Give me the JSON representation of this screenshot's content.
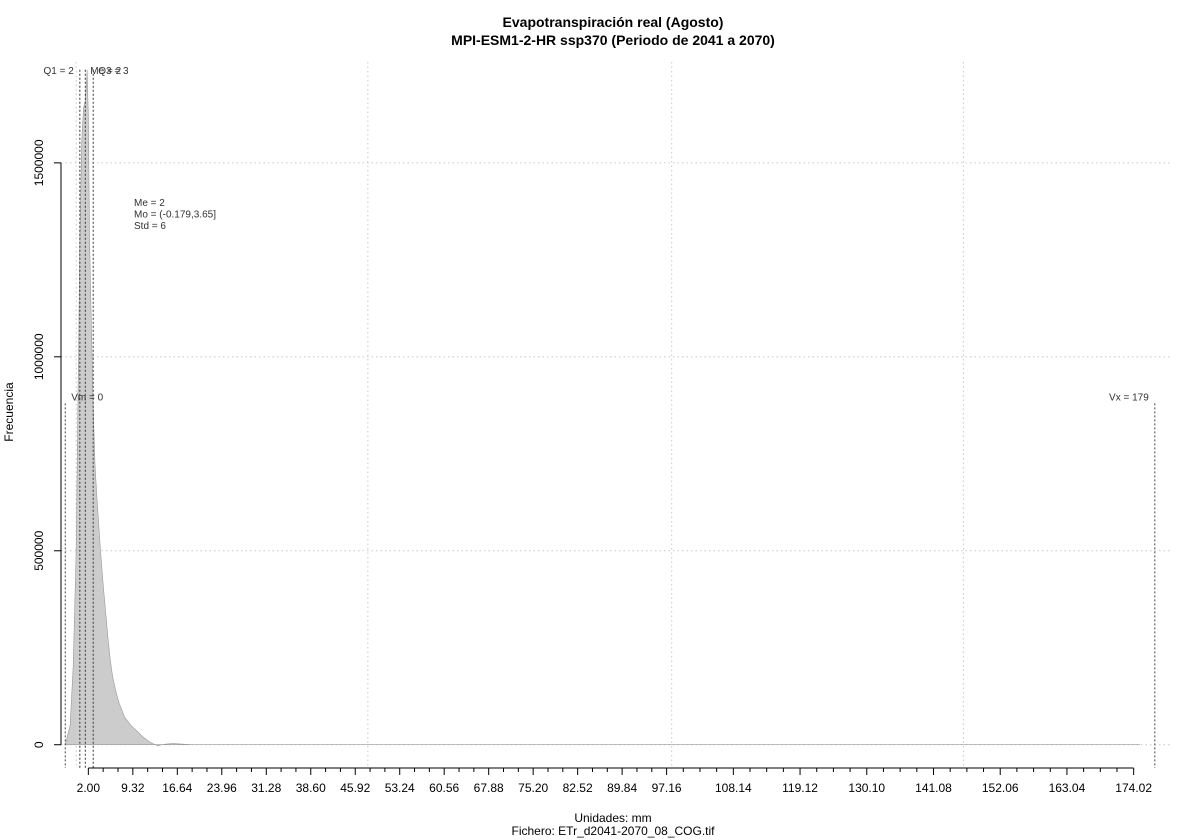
{
  "chart_data": {
    "type": "area",
    "title": "Evapotranspiración real (Agosto)",
    "subtitle": "MPI-ESM1-2-HR ssp370 (Periodo de 2041 a 2070)",
    "xlabel": "Unidades: mm",
    "ylabel": "Frecuencia",
    "footer": "Fichero: ETr_d2041-2070_08_COG.tif",
    "xlim": [
      -2.5,
      180
    ],
    "ylim": [
      -60000,
      1760000
    ],
    "x_ticks": [
      2.0,
      9.32,
      16.64,
      23.96,
      31.28,
      38.6,
      45.92,
      53.24,
      60.56,
      67.88,
      75.2,
      82.52,
      89.84,
      97.16,
      108.14,
      119.12,
      130.1,
      141.08,
      152.06,
      163.04,
      174.02
    ],
    "x_tick_labels": [
      "2.00",
      "9.32",
      "16.64",
      "23.96",
      "31.28",
      "38.60",
      "45.92",
      "53.24",
      "60.56",
      "67.88",
      "75.20",
      "82.52",
      "89.84",
      "97.16",
      "108.14",
      "119.12",
      "130.10",
      "141.08",
      "152.06",
      "163.04",
      "174.02"
    ],
    "y_ticks": [
      0,
      500000,
      1000000,
      1500000
    ],
    "y_tick_labels": [
      "0",
      "500000",
      "1000000",
      "1500000"
    ],
    "x_grid": [
      0,
      48,
      98,
      146
    ],
    "y_grid": [
      0,
      500000,
      1000000,
      1500000
    ],
    "grid": true,
    "series": [
      {
        "color": "#cccccc",
        "x": [
          -1.8,
          -1.0,
          -0.5,
          0.0,
          0.3,
          0.6,
          0.9,
          1.2,
          1.5,
          1.8,
          2.0,
          2.2,
          2.5,
          2.8,
          3.1,
          3.4,
          3.7,
          4.0,
          4.4,
          4.8,
          5.2,
          5.6,
          6.0,
          6.5,
          7.0,
          7.5,
          8.0,
          9.0,
          10.0,
          11.0,
          12.0,
          13.0,
          13.5,
          14.0,
          15.0,
          16.0,
          17.0,
          18.0,
          19.0,
          20.0,
          25.0,
          40.0,
          80.0,
          120.0,
          160.0,
          175.0
        ],
        "y": [
          0,
          50000,
          200000,
          500000,
          900000,
          1300000,
          1550000,
          1640000,
          1660000,
          1740000,
          1620000,
          1300000,
          1080000,
          870000,
          720000,
          640000,
          570000,
          500000,
          420000,
          350000,
          280000,
          220000,
          175000,
          140000,
          110000,
          90000,
          70000,
          50000,
          35000,
          20000,
          8000,
          0,
          -3000,
          0,
          2000,
          3000,
          2000,
          1000,
          0,
          0,
          0,
          0,
          0,
          0,
          0,
          0
        ]
      }
    ],
    "markers": [
      {
        "label": "Vm = 0",
        "x": -1.8
      },
      {
        "label": "Vx = 179",
        "x": 177.5
      },
      {
        "label": "Q1 = 2",
        "x": 0.6
      },
      {
        "label": "Me = 2",
        "x": 1.5
      },
      {
        "label": "Q3 = 3",
        "x": 2.8
      }
    ],
    "annotation_lines": [
      "Me = 2",
      "Mo = (-0.179,3.65]",
      "Std = 6"
    ]
  }
}
